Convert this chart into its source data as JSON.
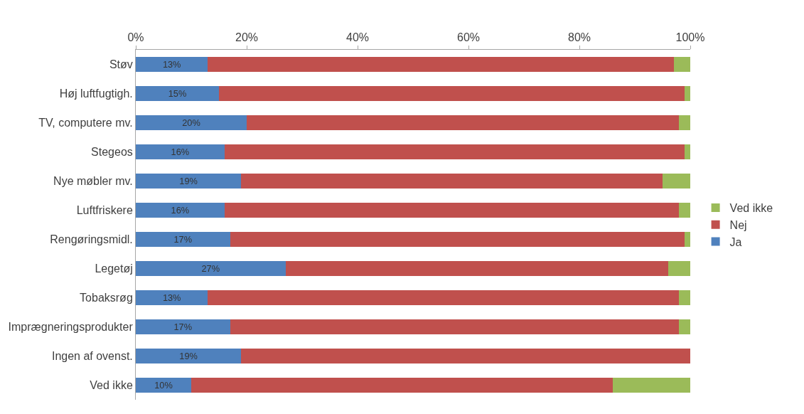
{
  "chart_data": {
    "type": "bar",
    "orientation": "horizontal",
    "stacked": true,
    "categories": [
      "Støv",
      "Høj luftfugtigh.",
      "TV, computere mv.",
      "Stegeos",
      "Nye møbler mv.",
      "Luftfriskere",
      "Rengøringsmidl.",
      "Legetøj",
      "Tobaksrøg",
      "Imprægneringsprodukter",
      "Ingen af ovenst.",
      "Ved ikke"
    ],
    "series": [
      {
        "name": "Ja",
        "color": "#4f81bd",
        "values": [
          13,
          15,
          20,
          16,
          19,
          16,
          17,
          27,
          13,
          17,
          19,
          10
        ],
        "value_labels": [
          "13%",
          "15%",
          "20%",
          "16%",
          "19%",
          "16%",
          "17%",
          "27%",
          "13%",
          "17%",
          "19%",
          "10%"
        ]
      },
      {
        "name": "Nej",
        "color": "#c0504d",
        "values": [
          84,
          84,
          78,
          83,
          76,
          82,
          82,
          69,
          85,
          81,
          81,
          76
        ]
      },
      {
        "name": "Ved ikke",
        "color": "#9bbb59",
        "values": [
          3,
          1,
          2,
          1,
          5,
          2,
          1,
          4,
          2,
          2,
          0,
          14
        ]
      }
    ],
    "xlim": [
      0,
      100
    ],
    "xticks": [
      {
        "value": 0,
        "label": "0%"
      },
      {
        "value": 20,
        "label": "20%"
      },
      {
        "value": 40,
        "label": "40%"
      },
      {
        "value": 60,
        "label": "60%"
      },
      {
        "value": 80,
        "label": "80%"
      },
      {
        "value": 100,
        "label": "100%"
      }
    ],
    "grid": false,
    "legend": "right"
  }
}
